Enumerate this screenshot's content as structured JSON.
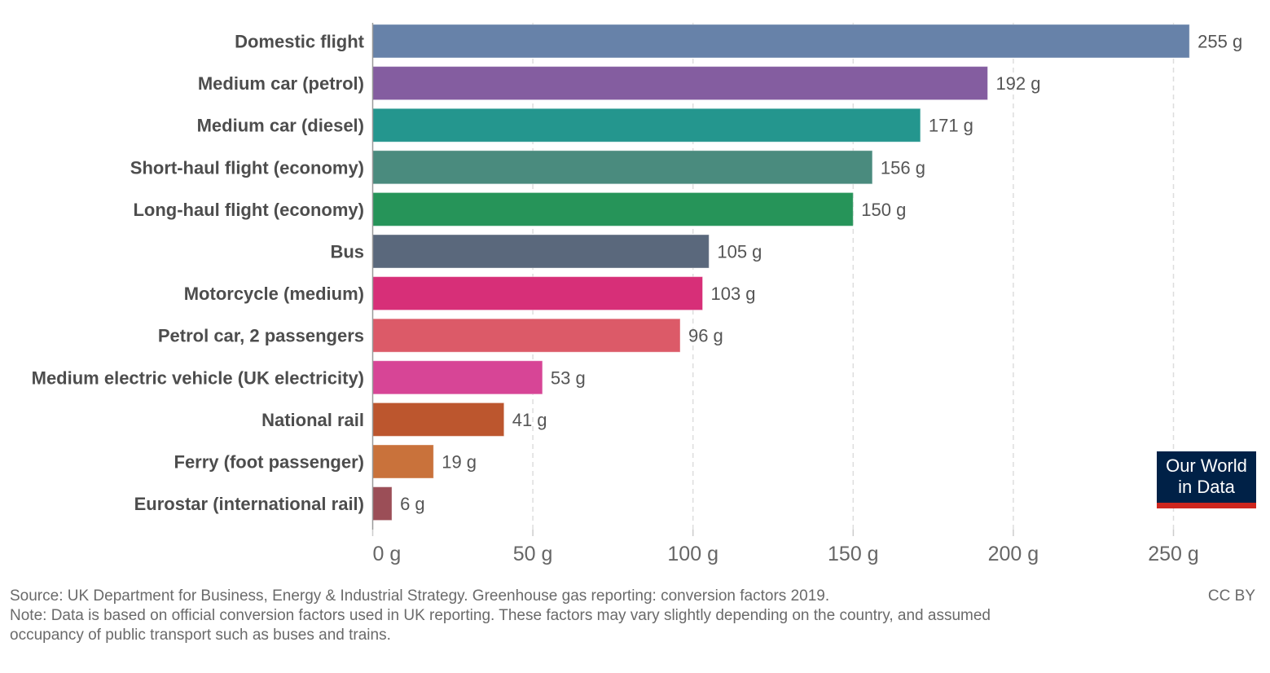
{
  "chart_data": {
    "type": "bar",
    "orientation": "horizontal",
    "title": "",
    "xlabel": "",
    "ylabel": "",
    "unit": "g",
    "xlim": [
      0,
      275
    ],
    "grid": "vertical dashed",
    "categories": [
      "Domestic flight",
      "Medium car (petrol)",
      "Medium car (diesel)",
      "Short-haul flight (economy)",
      "Long-haul flight (economy)",
      "Bus",
      "Motorcycle (medium)",
      "Petrol car, 2 passengers",
      "Medium electric vehicle (UK electricity)",
      "National rail",
      "Ferry (foot passenger)",
      "Eurostar (international rail)"
    ],
    "values": [
      255,
      192,
      171,
      156,
      150,
      105,
      103,
      96,
      53,
      41,
      19,
      6
    ],
    "value_labels": [
      "255 g",
      "192 g",
      "171 g",
      "156 g",
      "150 g",
      "105 g",
      "103 g",
      "96 g",
      "53 g",
      "41 g",
      "19 g",
      "6 g"
    ],
    "colors": [
      "#6782a9",
      "#845da0",
      "#24968e",
      "#4a8b7e",
      "#269459",
      "#5a687c",
      "#d72f78",
      "#dc5a68",
      "#d74596",
      "#bc562e",
      "#c9723b",
      "#9b4e57"
    ],
    "x_ticks": [
      0,
      50,
      100,
      150,
      200,
      250
    ],
    "x_tick_labels": [
      "0 g",
      "50 g",
      "100 g",
      "150 g",
      "200 g",
      "250 g"
    ]
  },
  "footer": {
    "source": "Source: UK Department for Business, Energy & Industrial Strategy. Greenhouse gas reporting: conversion factors 2019.",
    "note": "Note: Data is based on official conversion factors used in UK reporting. These factors may vary slightly depending on the country, and assumed\noccupancy of public transport such as buses and trains.",
    "license": "CC BY"
  },
  "logo": {
    "line1": "Our World",
    "line2": "in Data",
    "bg_color": "#002147",
    "accent_color": "#ce261e"
  }
}
